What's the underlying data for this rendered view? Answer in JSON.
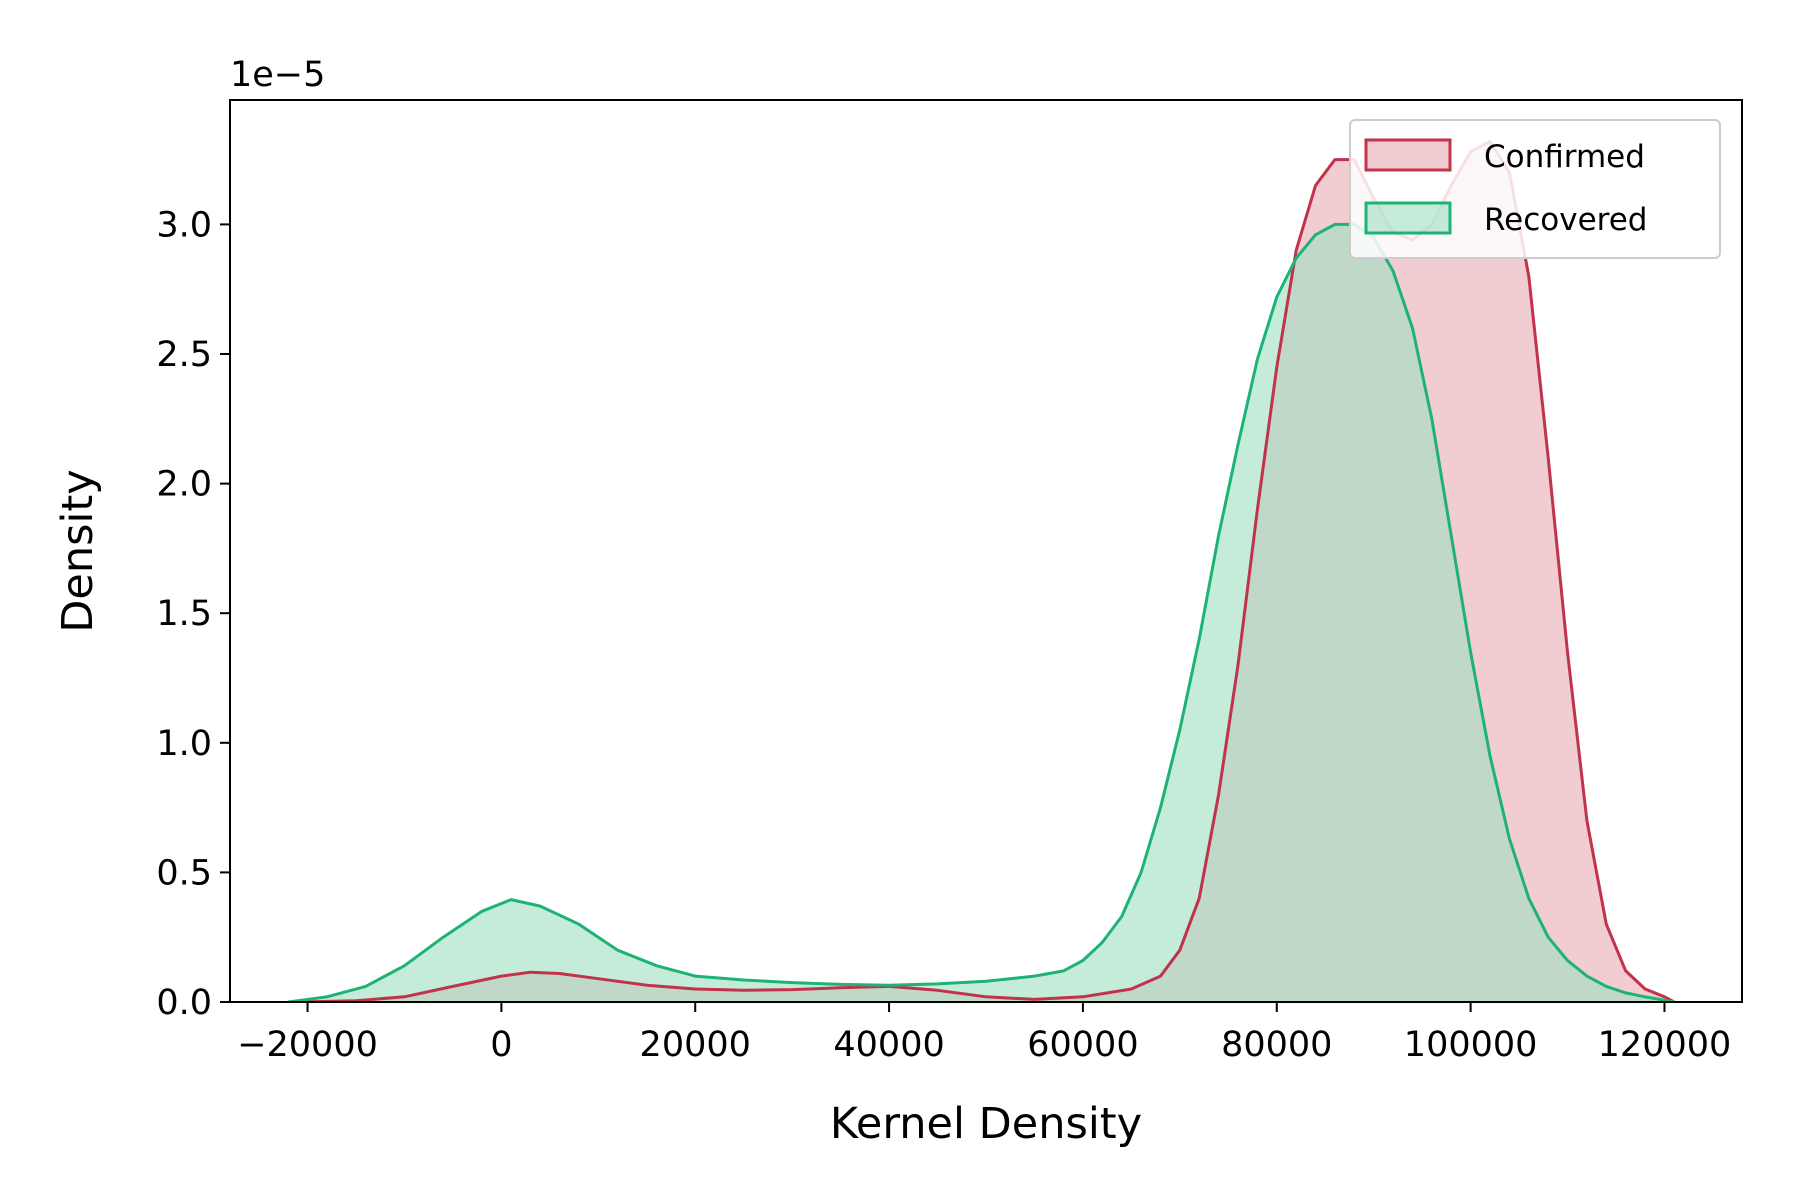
{
  "chart_data": {
    "type": "area",
    "title": "",
    "xlabel": "Kernel Density",
    "ylabel": "Density",
    "y_scale_label": "1e−5",
    "xlim": [
      -28000,
      128000
    ],
    "ylim": [
      0,
      3.48
    ],
    "x_ticks": [
      -20000,
      0,
      20000,
      40000,
      60000,
      80000,
      100000,
      120000
    ],
    "x_tick_labels": [
      "−20000",
      "0",
      "20000",
      "40000",
      "60000",
      "80000",
      "100000",
      "120000"
    ],
    "y_ticks": [
      0.0,
      0.5,
      1.0,
      1.5,
      2.0,
      2.5,
      3.0
    ],
    "y_tick_labels": [
      "0.0",
      "0.5",
      "1.0",
      "1.5",
      "2.0",
      "2.5",
      "3.0"
    ],
    "grid": false,
    "legend_position": "top-right",
    "series": [
      {
        "name": "Confirmed",
        "color": "#c0334a",
        "fill": "#e8aab3",
        "points": [
          [
            -21000,
            0.0
          ],
          [
            -15000,
            0.005
          ],
          [
            -10000,
            0.02
          ],
          [
            -5000,
            0.06
          ],
          [
            0,
            0.1
          ],
          [
            3000,
            0.115
          ],
          [
            6000,
            0.11
          ],
          [
            10000,
            0.09
          ],
          [
            15000,
            0.065
          ],
          [
            20000,
            0.05
          ],
          [
            25000,
            0.045
          ],
          [
            30000,
            0.048
          ],
          [
            35000,
            0.055
          ],
          [
            40000,
            0.06
          ],
          [
            45000,
            0.045
          ],
          [
            50000,
            0.02
          ],
          [
            55000,
            0.01
          ],
          [
            60000,
            0.02
          ],
          [
            65000,
            0.05
          ],
          [
            68000,
            0.1
          ],
          [
            70000,
            0.2
          ],
          [
            72000,
            0.4
          ],
          [
            74000,
            0.8
          ],
          [
            76000,
            1.3
          ],
          [
            78000,
            1.9
          ],
          [
            80000,
            2.45
          ],
          [
            82000,
            2.9
          ],
          [
            84000,
            3.15
          ],
          [
            86000,
            3.25
          ],
          [
            88000,
            3.25
          ],
          [
            90000,
            3.1
          ],
          [
            92000,
            2.97
          ],
          [
            94000,
            2.94
          ],
          [
            96000,
            3.0
          ],
          [
            98000,
            3.15
          ],
          [
            100000,
            3.28
          ],
          [
            102000,
            3.32
          ],
          [
            104000,
            3.2
          ],
          [
            106000,
            2.8
          ],
          [
            108000,
            2.1
          ],
          [
            110000,
            1.35
          ],
          [
            112000,
            0.7
          ],
          [
            114000,
            0.3
          ],
          [
            116000,
            0.12
          ],
          [
            118000,
            0.05
          ],
          [
            120000,
            0.02
          ],
          [
            121000,
            0.0
          ]
        ]
      },
      {
        "name": "Recovered",
        "color": "#1db377",
        "fill": "#9fdfc0",
        "points": [
          [
            -22000,
            0.0
          ],
          [
            -18000,
            0.02
          ],
          [
            -14000,
            0.06
          ],
          [
            -10000,
            0.14
          ],
          [
            -6000,
            0.25
          ],
          [
            -2000,
            0.35
          ],
          [
            1000,
            0.395
          ],
          [
            4000,
            0.37
          ],
          [
            8000,
            0.3
          ],
          [
            12000,
            0.2
          ],
          [
            16000,
            0.14
          ],
          [
            20000,
            0.1
          ],
          [
            25000,
            0.085
          ],
          [
            30000,
            0.075
          ],
          [
            35000,
            0.068
          ],
          [
            40000,
            0.065
          ],
          [
            45000,
            0.07
          ],
          [
            50000,
            0.08
          ],
          [
            55000,
            0.1
          ],
          [
            58000,
            0.12
          ],
          [
            60000,
            0.16
          ],
          [
            62000,
            0.23
          ],
          [
            64000,
            0.33
          ],
          [
            66000,
            0.5
          ],
          [
            68000,
            0.75
          ],
          [
            70000,
            1.05
          ],
          [
            72000,
            1.4
          ],
          [
            74000,
            1.8
          ],
          [
            76000,
            2.15
          ],
          [
            78000,
            2.48
          ],
          [
            80000,
            2.72
          ],
          [
            82000,
            2.87
          ],
          [
            84000,
            2.96
          ],
          [
            86000,
            3.0
          ],
          [
            88000,
            3.0
          ],
          [
            90000,
            2.95
          ],
          [
            92000,
            2.82
          ],
          [
            94000,
            2.6
          ],
          [
            96000,
            2.25
          ],
          [
            98000,
            1.8
          ],
          [
            100000,
            1.35
          ],
          [
            102000,
            0.95
          ],
          [
            104000,
            0.63
          ],
          [
            106000,
            0.4
          ],
          [
            108000,
            0.25
          ],
          [
            110000,
            0.16
          ],
          [
            112000,
            0.1
          ],
          [
            114000,
            0.06
          ],
          [
            116000,
            0.035
          ],
          [
            118000,
            0.02
          ],
          [
            121000,
            0.0
          ]
        ]
      }
    ],
    "overlap_color": "#b8c6b8"
  }
}
